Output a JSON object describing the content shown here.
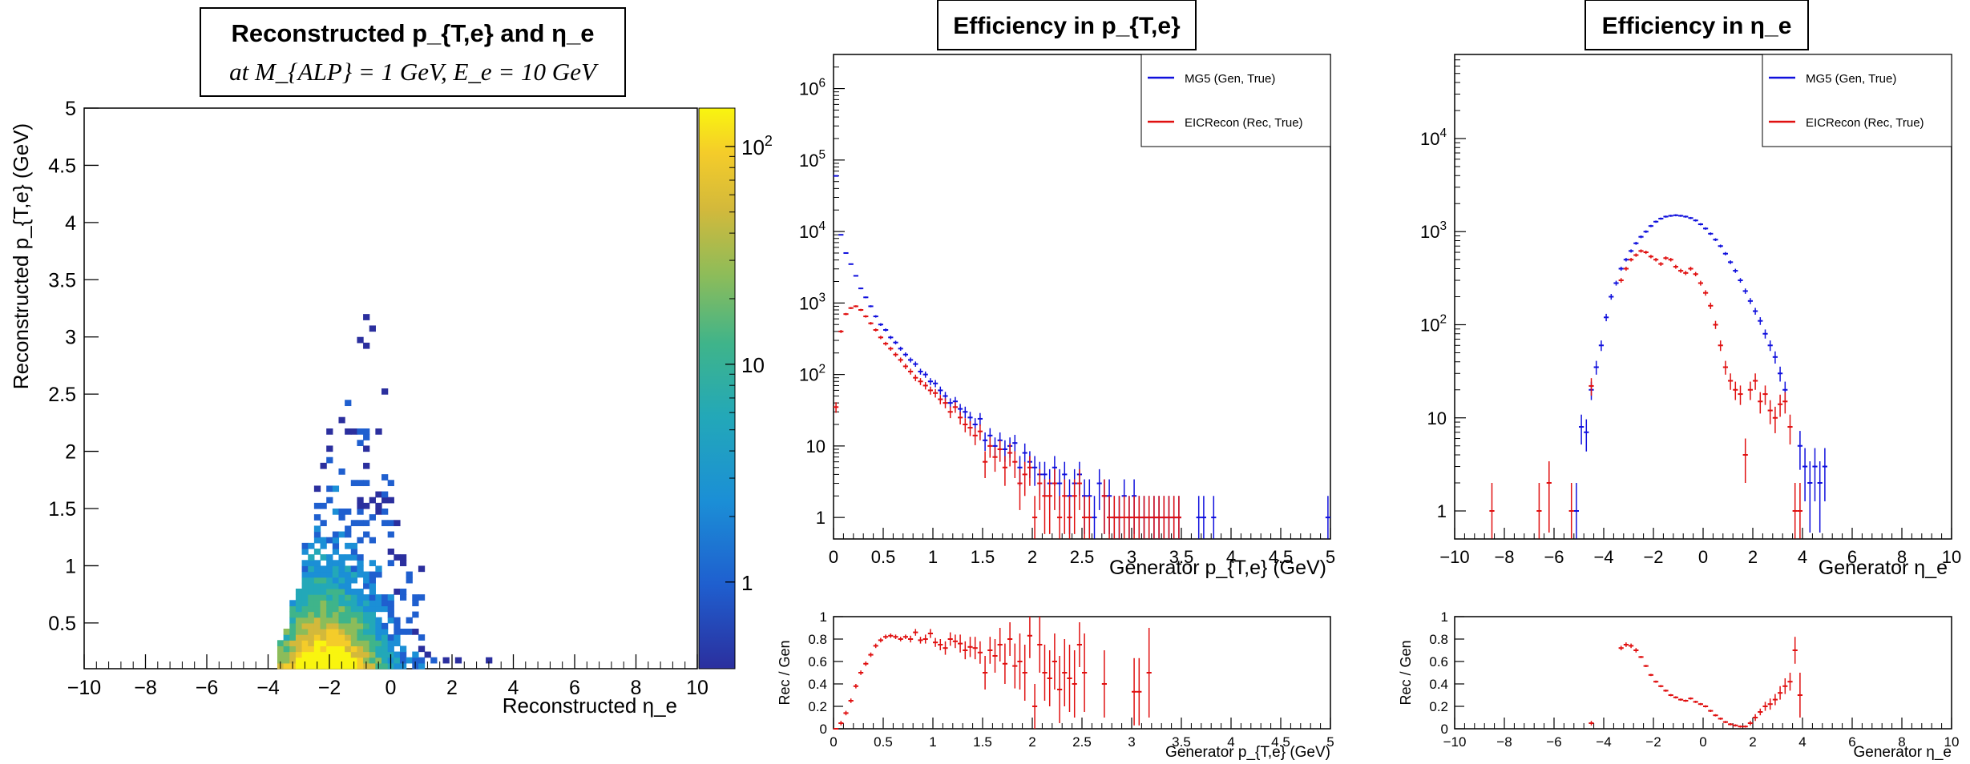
{
  "panels": {
    "left_title_line1": "Reconstructed p_{T,e} and η_e",
    "left_title_line2": "at M_{ALP} = 1 GeV, E_e = 10 GeV",
    "mid_title": "Efficiency in p_{T,e}",
    "right_title": "Efficiency in η_e"
  },
  "colors": {
    "mg5": "#1010dd",
    "eicrecon": "#e01010",
    "colorbar_low": "#2b2f9e",
    "colorbar_high": "#f9f50f"
  },
  "chart_data": [
    {
      "type": "heatmap",
      "title": "Reconstructed p_{T,e} and η_e at M_{ALP} = 1 GeV, E_e = 10 GeV",
      "xlabel": "Reconstructed η_e",
      "ylabel": "Reconstructed p_{T,e} (GeV)",
      "xlim": [
        -10,
        10
      ],
      "ylim": [
        0.1,
        5
      ],
      "xticks": [
        "−10",
        "−8",
        "−6",
        "−4",
        "−2",
        "0",
        "2",
        "4",
        "6",
        "8",
        "10"
      ],
      "yticks": [
        "0.5",
        "1",
        "1.5",
        "2",
        "2.5",
        "3",
        "3.5",
        "4",
        "4.5",
        "5"
      ],
      "colorbar": {
        "scale": "log",
        "min": 0.4,
        "max": 150,
        "ticks": [
          "1",
          "10",
          "10^2"
        ]
      },
      "density": {
        "peak_eta": -2.2,
        "peak_pt": 0.18,
        "eta_range": [
          -3.7,
          3.6
        ],
        "pt_max": 3.8
      }
    },
    {
      "type": "scatter",
      "title": "Efficiency in p_{T,e}",
      "xlabel": "Generator p_{T,e} (GeV)",
      "ylabel": "",
      "yscale": "log",
      "xlim": [
        0,
        5
      ],
      "ylim": [
        0.5,
        3000000
      ],
      "xticks": [
        "0",
        "0.5",
        "1",
        "1.5",
        "2",
        "2.5",
        "3",
        "3.5",
        "4",
        "4.5",
        "5"
      ],
      "yticks": [
        "1",
        "10",
        "10^2",
        "10^3",
        "10^4",
        "10^5",
        "10^6"
      ],
      "legend": [
        "MG5 (Gen, True)",
        "EICRecon (Rec, True)"
      ],
      "legend_position": "top-right",
      "series": [
        {
          "name": "MG5 (Gen, True)",
          "x": [
            0.025,
            0.075,
            0.125,
            0.175,
            0.225,
            0.275,
            0.325,
            0.375,
            0.425,
            0.475,
            0.525,
            0.575,
            0.625,
            0.675,
            0.725,
            0.775,
            0.825,
            0.875,
            0.925,
            0.975,
            1.025,
            1.075,
            1.125,
            1.175,
            1.225,
            1.275,
            1.325,
            1.375,
            1.425,
            1.475,
            1.525,
            1.575,
            1.625,
            1.675,
            1.725,
            1.775,
            1.825,
            1.875,
            1.925,
            1.975,
            2.025,
            2.075,
            2.125,
            2.175,
            2.225,
            2.275,
            2.325,
            2.375,
            2.425,
            2.475,
            2.525,
            2.575,
            2.625,
            2.675,
            2.725,
            2.775,
            2.825,
            2.875,
            2.925,
            2.975,
            3.025,
            3.075,
            3.125,
            3.175,
            3.225,
            3.275,
            3.325,
            3.375,
            3.425,
            3.475,
            3.675,
            3.725,
            3.825,
            4.975
          ],
          "y": [
            60000,
            9000,
            5000,
            3500,
            2400,
            1600,
            1200,
            900,
            650,
            500,
            420,
            330,
            280,
            230,
            190,
            160,
            140,
            110,
            100,
            80,
            75,
            60,
            50,
            40,
            42,
            33,
            30,
            25,
            20,
            24,
            12,
            14,
            10,
            12,
            9,
            10,
            11,
            5,
            8,
            6,
            5,
            4,
            4,
            3,
            5,
            3,
            4,
            2,
            3,
            4,
            2,
            2,
            1,
            3,
            2,
            2,
            1,
            1,
            2,
            1,
            2,
            1,
            1,
            1,
            1,
            1,
            1,
            1,
            1,
            1,
            1,
            1,
            1,
            1
          ]
        },
        {
          "name": "EICRecon (Rec, True)",
          "x": [
            0.025,
            0.075,
            0.125,
            0.175,
            0.225,
            0.275,
            0.325,
            0.375,
            0.425,
            0.475,
            0.525,
            0.575,
            0.625,
            0.675,
            0.725,
            0.775,
            0.825,
            0.875,
            0.925,
            0.975,
            1.025,
            1.075,
            1.125,
            1.175,
            1.225,
            1.275,
            1.325,
            1.375,
            1.425,
            1.475,
            1.525,
            1.575,
            1.625,
            1.675,
            1.725,
            1.775,
            1.825,
            1.875,
            1.925,
            1.975,
            2.025,
            2.075,
            2.125,
            2.175,
            2.225,
            2.275,
            2.325,
            2.375,
            2.425,
            2.475,
            2.525,
            2.575,
            2.725,
            2.775,
            2.825,
            2.875,
            2.925,
            2.975,
            3.025,
            3.075,
            3.125,
            3.175,
            3.225,
            3.275,
            3.325,
            3.375,
            3.425,
            3.475
          ],
          "y": [
            35,
            400,
            700,
            850,
            900,
            800,
            650,
            520,
            420,
            330,
            270,
            230,
            190,
            160,
            130,
            110,
            90,
            80,
            70,
            60,
            55,
            45,
            40,
            30,
            35,
            25,
            20,
            18,
            14,
            16,
            6,
            10,
            7,
            9,
            5,
            8,
            6,
            3,
            4,
            5,
            1,
            3,
            2,
            2,
            3,
            1,
            2,
            1,
            2,
            3,
            1,
            1,
            2,
            1,
            1,
            1,
            1,
            1,
            1,
            1,
            1,
            1,
            1,
            1,
            1,
            1,
            1,
            1
          ]
        }
      ]
    },
    {
      "type": "scatter",
      "title": "",
      "xlabel": "Generator p_{T,e} (GeV)",
      "ylabel": "Rec / Gen",
      "xlim": [
        0,
        5
      ],
      "ylim": [
        0,
        1
      ],
      "xticks": [
        "0",
        "0.5",
        "1",
        "1.5",
        "2",
        "2.5",
        "3",
        "3.5",
        "4",
        "4.5",
        "5"
      ],
      "yticks": [
        "0",
        "0.2",
        "0.4",
        "0.6",
        "0.8",
        "1"
      ],
      "series": [
        {
          "name": "",
          "x": [
            0.025,
            0.075,
            0.125,
            0.175,
            0.225,
            0.275,
            0.325,
            0.375,
            0.425,
            0.475,
            0.525,
            0.575,
            0.625,
            0.675,
            0.725,
            0.775,
            0.825,
            0.875,
            0.925,
            0.975,
            1.025,
            1.075,
            1.125,
            1.175,
            1.225,
            1.275,
            1.325,
            1.375,
            1.425,
            1.475,
            1.525,
            1.575,
            1.625,
            1.675,
            1.725,
            1.775,
            1.825,
            1.875,
            1.925,
            1.975,
            2.025,
            2.075,
            2.125,
            2.175,
            2.225,
            2.275,
            2.325,
            2.375,
            2.425,
            2.475,
            2.525,
            2.725,
            3.025,
            3.075,
            3.175
          ],
          "y": [
            0.0,
            0.05,
            0.14,
            0.25,
            0.38,
            0.5,
            0.58,
            0.66,
            0.74,
            0.79,
            0.82,
            0.83,
            0.82,
            0.8,
            0.82,
            0.8,
            0.86,
            0.79,
            0.8,
            0.85,
            0.77,
            0.75,
            0.72,
            0.8,
            0.78,
            0.76,
            0.7,
            0.73,
            0.72,
            0.68,
            0.5,
            0.7,
            0.65,
            0.75,
            0.58,
            0.8,
            0.56,
            0.6,
            0.5,
            0.83,
            0.2,
            0.75,
            0.5,
            0.45,
            0.6,
            0.35,
            0.5,
            0.45,
            0.4,
            0.75,
            0.5,
            0.4,
            0.33,
            0.33,
            0.5
          ],
          "err": [
            0.0,
            0.02,
            0.02,
            0.02,
            0.02,
            0.02,
            0.02,
            0.02,
            0.02,
            0.02,
            0.02,
            0.02,
            0.02,
            0.02,
            0.02,
            0.03,
            0.03,
            0.03,
            0.04,
            0.04,
            0.04,
            0.05,
            0.06,
            0.06,
            0.06,
            0.08,
            0.08,
            0.09,
            0.1,
            0.1,
            0.15,
            0.12,
            0.15,
            0.15,
            0.18,
            0.15,
            0.2,
            0.25,
            0.25,
            0.2,
            0.2,
            0.25,
            0.25,
            0.25,
            0.25,
            0.3,
            0.3,
            0.3,
            0.3,
            0.2,
            0.35,
            0.3,
            0.3,
            0.3,
            0.4
          ]
        }
      ]
    },
    {
      "type": "scatter",
      "title": "Efficiency in η_e",
      "xlabel": "Generator η_e",
      "ylabel": "",
      "yscale": "log",
      "xlim": [
        -10,
        10
      ],
      "ylim": [
        0.5,
        80000
      ],
      "xticks": [
        "−10",
        "−8",
        "−6",
        "−4",
        "−2",
        "0",
        "2",
        "4",
        "6",
        "8",
        "10"
      ],
      "yticks": [
        "1",
        "10",
        "10^2",
        "10^3",
        "10^4"
      ],
      "legend": [
        "MG5 (Gen, True)",
        "EICRecon (Rec, True)"
      ],
      "legend_position": "top-right",
      "series": [
        {
          "name": "MG5 (Gen, True)",
          "x": [
            -5.1,
            -4.9,
            -4.7,
            -4.5,
            -4.3,
            -4.1,
            -3.9,
            -3.7,
            -3.5,
            -3.3,
            -3.1,
            -2.9,
            -2.7,
            -2.5,
            -2.3,
            -2.1,
            -1.9,
            -1.7,
            -1.5,
            -1.3,
            -1.1,
            -0.9,
            -0.7,
            -0.5,
            -0.3,
            -0.1,
            0.1,
            0.3,
            0.5,
            0.7,
            0.9,
            1.1,
            1.3,
            1.5,
            1.7,
            1.9,
            2.1,
            2.3,
            2.5,
            2.7,
            2.9,
            3.1,
            3.3,
            3.9,
            4.1,
            4.3,
            4.5,
            4.7,
            4.9
          ],
          "y": [
            1,
            8,
            7,
            20,
            35,
            60,
            120,
            200,
            280,
            400,
            500,
            620,
            750,
            880,
            1000,
            1150,
            1280,
            1380,
            1450,
            1480,
            1500,
            1480,
            1450,
            1400,
            1320,
            1200,
            1080,
            950,
            820,
            700,
            580,
            470,
            380,
            300,
            230,
            180,
            140,
            110,
            80,
            60,
            45,
            30,
            20,
            5,
            3,
            2,
            3,
            2,
            3
          ]
        },
        {
          "name": "EICRecon (Rec, True)",
          "x": [
            -8.5,
            -6.6,
            -6.2,
            -5.3,
            -4.5,
            -3.3,
            -3.1,
            -2.9,
            -2.7,
            -2.5,
            -2.3,
            -2.1,
            -1.9,
            -1.7,
            -1.5,
            -1.3,
            -1.1,
            -0.9,
            -0.7,
            -0.5,
            -0.3,
            -0.1,
            0.1,
            0.3,
            0.5,
            0.7,
            0.9,
            1.1,
            1.3,
            1.5,
            1.7,
            1.9,
            2.1,
            2.3,
            2.5,
            2.7,
            2.9,
            3.1,
            3.3,
            3.5,
            3.7,
            3.9
          ],
          "y": [
            1,
            1,
            2,
            1,
            22,
            300,
            400,
            500,
            560,
            620,
            600,
            540,
            500,
            450,
            520,
            500,
            420,
            380,
            360,
            400,
            350,
            280,
            220,
            160,
            100,
            60,
            35,
            25,
            20,
            18,
            4,
            20,
            25,
            15,
            18,
            12,
            10,
            14,
            15,
            8,
            1,
            1
          ]
        }
      ]
    },
    {
      "type": "scatter",
      "title": "",
      "xlabel": "Generator η_e",
      "ylabel": "Rec / Gen",
      "xlim": [
        -10,
        10
      ],
      "ylim": [
        0,
        1
      ],
      "xticks": [
        "−10",
        "−8",
        "−6",
        "−4",
        "−2",
        "0",
        "2",
        "4",
        "6",
        "8",
        "10"
      ],
      "yticks": [
        "0",
        "0.2",
        "0.4",
        "0.6",
        "0.8",
        "1"
      ],
      "series": [
        {
          "name": "",
          "x": [
            -4.5,
            -3.3,
            -3.1,
            -2.9,
            -2.7,
            -2.5,
            -2.3,
            -2.1,
            -1.9,
            -1.7,
            -1.5,
            -1.3,
            -1.1,
            -0.9,
            -0.7,
            -0.5,
            -0.3,
            -0.1,
            0.1,
            0.3,
            0.5,
            0.7,
            0.9,
            1.1,
            1.3,
            1.5,
            1.7,
            1.9,
            2.1,
            2.3,
            2.5,
            2.7,
            2.9,
            3.1,
            3.3,
            3.5,
            3.7,
            3.9
          ],
          "y": [
            0.05,
            0.72,
            0.75,
            0.74,
            0.7,
            0.64,
            0.56,
            0.48,
            0.42,
            0.38,
            0.34,
            0.3,
            0.28,
            0.26,
            0.25,
            0.27,
            0.24,
            0.22,
            0.2,
            0.16,
            0.12,
            0.09,
            0.06,
            0.04,
            0.03,
            0.02,
            0.02,
            0.05,
            0.1,
            0.15,
            0.2,
            0.22,
            0.26,
            0.32,
            0.38,
            0.42,
            0.7,
            0.3
          ],
          "err": [
            0.02,
            0.02,
            0.02,
            0.02,
            0.02,
            0.01,
            0.01,
            0.01,
            0.01,
            0.01,
            0.01,
            0.01,
            0.01,
            0.01,
            0.01,
            0.01,
            0.01,
            0.01,
            0.01,
            0.01,
            0.01,
            0.01,
            0.01,
            0.01,
            0.01,
            0.01,
            0.01,
            0.02,
            0.03,
            0.03,
            0.04,
            0.05,
            0.05,
            0.06,
            0.07,
            0.08,
            0.12,
            0.2
          ]
        }
      ]
    }
  ]
}
